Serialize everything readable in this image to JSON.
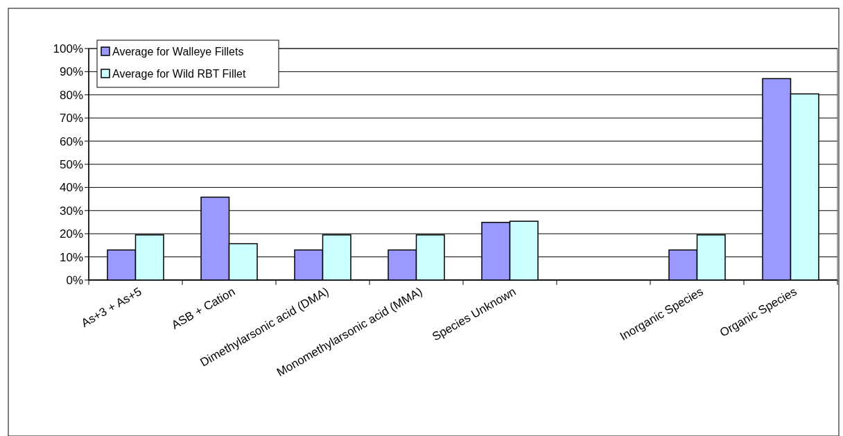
{
  "chart_data": {
    "type": "bar",
    "categories": [
      "As+3 + As+5",
      "ASB + Cation",
      "Dimethylarsonic acid (DMA)",
      "Monomethylarsonic acid (MMA)",
      "Species Unknown",
      null,
      "Inorganic Species",
      "Organic Species"
    ],
    "series": [
      {
        "name": "Average for Walleye Fillets",
        "color": "#9999ff",
        "values": [
          13,
          35.8,
          13,
          13,
          24.9,
          null,
          13,
          87
        ]
      },
      {
        "name": "Average for Wild RBT Fillet",
        "color": "#ccffff",
        "values": [
          19.5,
          15.7,
          19.5,
          19.5,
          25.4,
          null,
          19.5,
          80.4
        ]
      }
    ],
    "ylim": [
      0,
      100
    ],
    "yticks": [
      {
        "value": 0,
        "label": "0%"
      },
      {
        "value": 10,
        "label": "10%"
      },
      {
        "value": 20,
        "label": "20%"
      },
      {
        "value": 30,
        "label": "30%"
      },
      {
        "value": 40,
        "label": "40%"
      },
      {
        "value": 50,
        "label": "50%"
      },
      {
        "value": 60,
        "label": "60%"
      },
      {
        "value": 70,
        "label": "70%"
      },
      {
        "value": 80,
        "label": "80%"
      },
      {
        "value": 90,
        "label": "90%"
      },
      {
        "value": 100,
        "label": "100%"
      }
    ],
    "grid": "y",
    "legend": "top left"
  }
}
